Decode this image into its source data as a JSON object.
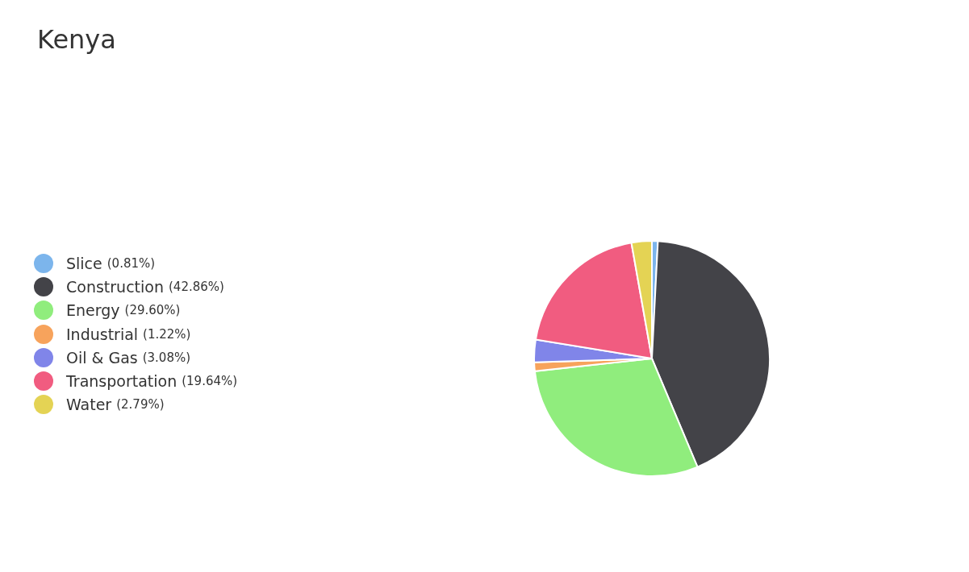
{
  "chart_data": {
    "type": "pie",
    "title": "Kenya",
    "categories": [
      "Slice",
      "Construction",
      "Energy",
      "Industrial",
      "Oil & Gas",
      "Transportation",
      "Water"
    ],
    "values": [
      0.81,
      42.86,
      29.6,
      1.22,
      3.08,
      19.64,
      2.79
    ],
    "value_labels": [
      "(0.81%)",
      "(42.86%)",
      "(29.60%)",
      "(1.22%)",
      "(3.08%)",
      "(19.64%)",
      "(2.79%)"
    ],
    "colors": [
      "#7cb5ec",
      "#434348",
      "#90ed7d",
      "#f7a35c",
      "#8085e9",
      "#f15c80",
      "#e4d354"
    ],
    "legend": "left"
  }
}
